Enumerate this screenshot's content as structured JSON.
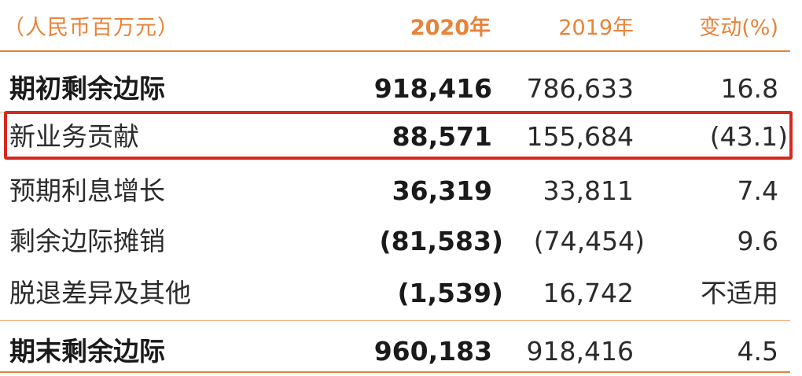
{
  "header": {
    "unit": "（人民币百万元）",
    "col_2020": "2020年",
    "col_2019": "2019年",
    "col_change": "变动(%)"
  },
  "rows": [
    {
      "label": "期初剩余边际",
      "v2020": "918,416",
      "v2019": "786,633",
      "change": "16.8",
      "bold": true
    },
    {
      "label": "新业务贡献",
      "v2020": "88,571",
      "v2019": "155,684",
      "change": "(43.1)",
      "bold": false,
      "highlighted": true
    },
    {
      "label": "预期利息增长",
      "v2020": "36,319",
      "v2019": "33,811",
      "change": "7.4",
      "bold": false
    },
    {
      "label": "剩余边际摊销",
      "v2020": "(81,583)",
      "v2019": "(74,454)",
      "change": "9.6",
      "bold": false
    },
    {
      "label": "脱退差异及其他",
      "v2020": "(1,539)",
      "v2019": "16,742",
      "change": "不适用",
      "bold": false
    },
    {
      "label": "期末剩余边际",
      "v2020": "960,183",
      "v2019": "918,416",
      "change": "4.5",
      "bold": true
    }
  ],
  "colors": {
    "accent": "#e8833a",
    "highlight_border": "#d42a1f",
    "text": "#2b2b2b"
  }
}
